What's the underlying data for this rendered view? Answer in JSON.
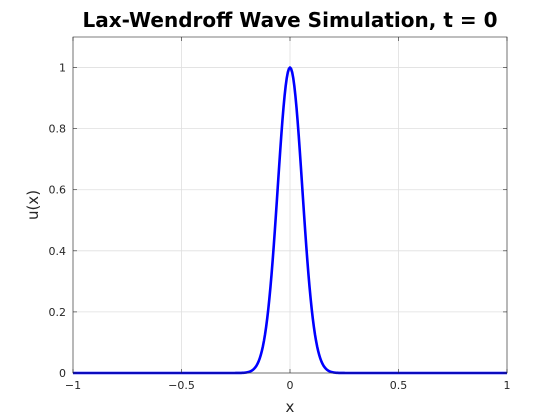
{
  "chart_data": {
    "type": "line",
    "title": "Lax-Wendroff Wave Simulation, t = 0",
    "xlabel": "x",
    "ylabel": "u(x)",
    "xlim": [
      -1,
      1
    ],
    "ylim": [
      0,
      1.1
    ],
    "xticks": [
      -1,
      -0.5,
      0,
      0.5,
      1
    ],
    "xtick_labels": [
      "−1",
      "−0.5",
      "0",
      "0.5",
      "1"
    ],
    "yticks": [
      0,
      0.2,
      0.4,
      0.6,
      0.8,
      1
    ],
    "ytick_labels": [
      "0",
      "0.2",
      "0.4",
      "0.6",
      "0.8",
      "1"
    ],
    "grid": true,
    "series": [
      {
        "color": "#0000ff",
        "x": [
          -1,
          -0.5,
          -0.3,
          -0.25,
          -0.2,
          -0.18,
          -0.16,
          -0.14,
          -0.12,
          -0.1,
          -0.08,
          -0.06,
          -0.04,
          -0.02,
          0,
          0.02,
          0.04,
          0.06,
          0.08,
          0.1,
          0.12,
          0.14,
          0.16,
          0.18,
          0.2,
          0.25,
          0.3,
          0.5,
          1
        ],
        "y": [
          0,
          0,
          0,
          0.002,
          0.011,
          0.025,
          0.056,
          0.113,
          0.216,
          0.368,
          0.557,
          0.751,
          0.98,
          0.98,
          1,
          0.98,
          0.98,
          0.751,
          0.557,
          0.368,
          0.216,
          0.113,
          0.056,
          0.025,
          0.011,
          0.002,
          0,
          0,
          0
        ]
      }
    ]
  }
}
